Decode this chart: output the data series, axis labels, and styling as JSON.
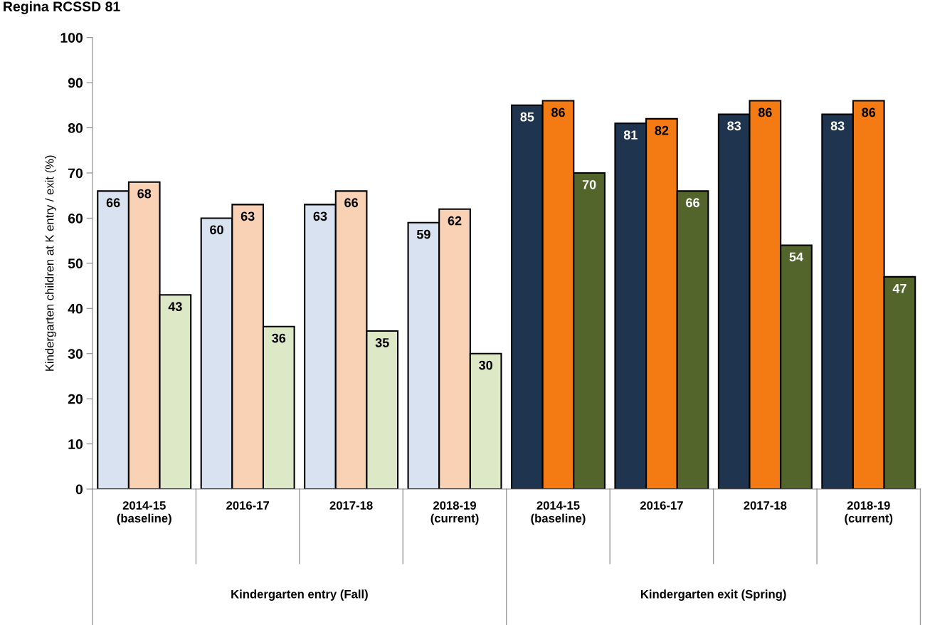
{
  "chart_data": {
    "type": "bar",
    "title": "Regina RCSSD 81",
    "ylabel": "Kindergarten children at K entry / exit (%)",
    "categories": [
      "2014-15\n(baseline)",
      "2016-17",
      "2017-18",
      "2018-19\n(current)",
      "2014-15\n(baseline)",
      "2016-17",
      "2017-18",
      "2018-19\n(current)"
    ],
    "series": [
      {
        "colors": [
          "#d9e2f0",
          "#d9e2f0",
          "#d9e2f0",
          "#d9e2f0",
          "#1f344f",
          "#1f344f",
          "#1f344f",
          "#1f344f"
        ],
        "values": [
          66,
          60,
          63,
          59,
          85,
          81,
          83,
          83
        ]
      },
      {
        "colors": [
          "#f9d2b5",
          "#f9d2b5",
          "#f9d2b5",
          "#f9d2b5",
          "#f47a14",
          "#f47a14",
          "#f47a14",
          "#f47a14"
        ],
        "values": [
          68,
          63,
          66,
          62,
          86,
          82,
          86,
          86
        ]
      },
      {
        "colors": [
          "#dde8c6",
          "#dde8c6",
          "#dde8c6",
          "#dde8c6",
          "#53652b",
          "#53652b",
          "#53652b",
          "#53652b"
        ],
        "values": [
          43,
          36,
          35,
          30,
          70,
          66,
          54,
          47
        ]
      }
    ],
    "annotations": [
      "Kindergarten entry (Fall)",
      "Kindergarten exit (Spring)"
    ],
    "ylim": [
      0,
      100
    ],
    "yticks": [
      0,
      10,
      20,
      30,
      40,
      50,
      60,
      70,
      80,
      90,
      100
    ],
    "data_labels": true,
    "grid": false,
    "legend": false
  }
}
